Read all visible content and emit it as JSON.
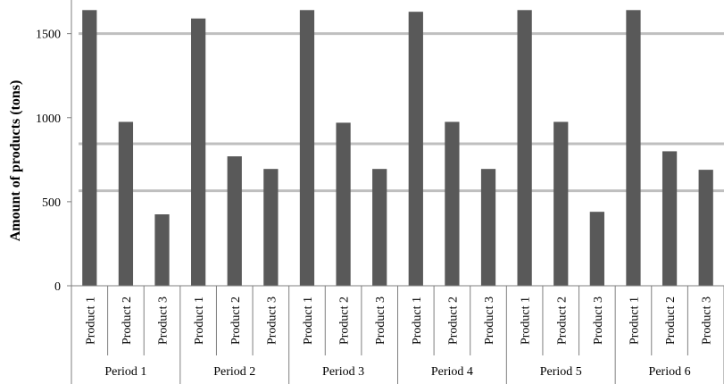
{
  "chart_data": {
    "type": "bar",
    "title": "",
    "xlabel": "",
    "ylabel": "Amount of products (tons)",
    "ylim": [
      0,
      1700
    ],
    "yticks": [
      0,
      500,
      1000,
      1500
    ],
    "ytick_labels": [
      "0",
      "500",
      "1000",
      "1500"
    ],
    "grid": false,
    "groups": [
      "Period 1",
      "Period 2",
      "Period 3",
      "Period 4",
      "Period 5",
      "Period 6"
    ],
    "categories": [
      "Product 1",
      "Product 2",
      "Product 3"
    ],
    "values": [
      [
        1640,
        975,
        425
      ],
      [
        1590,
        770,
        695
      ],
      [
        1640,
        970,
        695
      ],
      [
        1630,
        975,
        695
      ],
      [
        1640,
        975,
        440
      ],
      [
        1640,
        800,
        690
      ]
    ],
    "reference_lines": [
      1500,
      845,
      565
    ],
    "colors": {
      "bar": "#595959",
      "reference_line": "#bfbfbf",
      "axis": "#7f7f7f"
    }
  }
}
